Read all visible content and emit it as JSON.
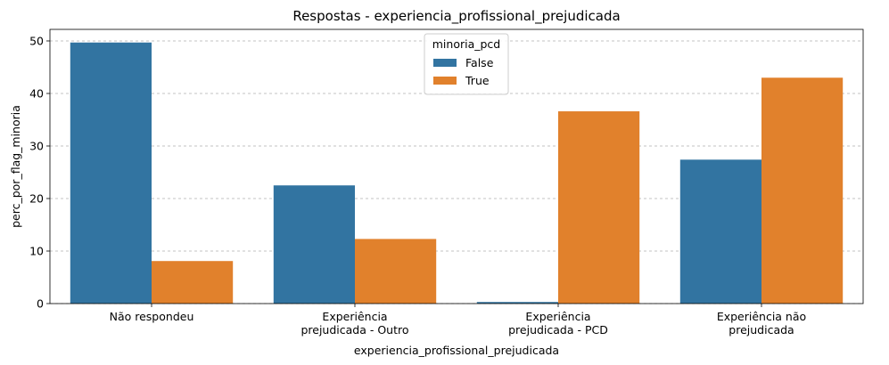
{
  "chart_data": {
    "type": "bar",
    "title": "Respostas - experiencia_profissional_prejudicada",
    "xlabel": "experiencia_profissional_prejudicada",
    "ylabel": "perc_por_flag_minoria",
    "categories": [
      [
        "Não respondeu"
      ],
      [
        "Experiência",
        "prejudicada - Outro"
      ],
      [
        "Experiência",
        "prejudicada - PCD"
      ],
      [
        "Experiência não",
        "prejudicada"
      ]
    ],
    "series": [
      {
        "name": "False",
        "color": "#3274a1",
        "values": [
          49.7,
          22.5,
          0.3,
          27.4
        ]
      },
      {
        "name": "True",
        "color": "#e1812c",
        "values": [
          8.1,
          12.3,
          36.6,
          43.0
        ]
      }
    ],
    "ylim": [
      0,
      52.2
    ],
    "yticks": [
      0,
      10,
      20,
      30,
      40,
      50
    ],
    "grid": "y-dashed",
    "legend": {
      "title": "minoria_pcd",
      "position": "upper-center"
    }
  }
}
